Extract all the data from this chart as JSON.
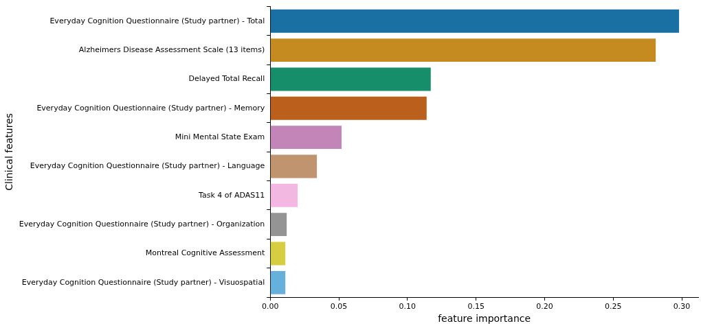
{
  "chart_data": {
    "type": "bar",
    "orientation": "horizontal",
    "xlabel": "feature importance",
    "ylabel": "Clinical features",
    "categories": [
      "Everyday Cognition Questionnaire (Study partner) - Total",
      "Alzheimers Disease Assessment Scale (13 items)",
      "Delayed Total Recall",
      "Everyday Cognition Questionnaire (Study partner) - Memory",
      "Mini Mental State Exam",
      "Everyday Cognition Questionnaire (Study partner) - Language",
      "Task 4 of ADAS11",
      "Everyday Cognition Questionnaire (Study partner) - Organization",
      "Montreal Cognitive Assessment",
      "Everyday Cognition Questionnaire (Study partner) - Visuospatial"
    ],
    "values": [
      0.298,
      0.281,
      0.117,
      0.114,
      0.052,
      0.034,
      0.02,
      0.012,
      0.011,
      0.011
    ],
    "colors": [
      "#1a70a3",
      "#c58a20",
      "#168e6a",
      "#ba601c",
      "#c384b8",
      "#c0946e",
      "#f3b8e2",
      "#949494",
      "#d7cd40",
      "#66b0dc"
    ],
    "xlim": [
      0,
      0.312
    ],
    "xticks": [
      {
        "value": 0,
        "label": "0.00"
      },
      0.05,
      {
        "value": 0.1,
        "label": "0.10"
      },
      0.15,
      {
        "value": 0.2,
        "label": "0.20"
      },
      0.25,
      {
        "value": 0.3,
        "label": "0.30"
      }
    ],
    "grid": false,
    "legend": false
  }
}
